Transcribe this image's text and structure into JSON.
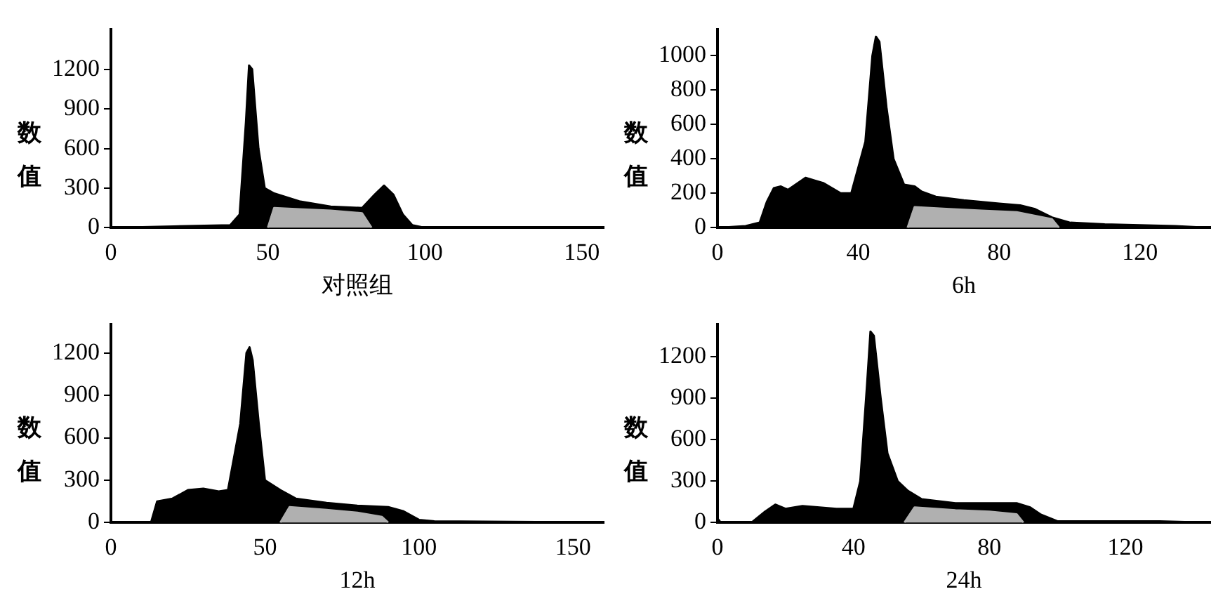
{
  "chart_data": [
    {
      "type": "area",
      "xlabel": "对照组",
      "ylabel": "数值",
      "xlim": [
        0,
        157
      ],
      "xticks": [
        0,
        50,
        100,
        150
      ],
      "ylim": [
        0,
        1500
      ],
      "yticks": [
        0,
        300,
        600,
        900,
        1200
      ],
      "grid": false,
      "series": [
        {
          "type": "area",
          "color": "#000000",
          "x": [
            0,
            20,
            38,
            41,
            43,
            44,
            45,
            47,
            49,
            52,
            60,
            70,
            80,
            84,
            87,
            90,
            93,
            96,
            100,
            157
          ],
          "values": [
            0,
            10,
            20,
            100,
            800,
            1230,
            1200,
            600,
            300,
            260,
            200,
            160,
            150,
            250,
            320,
            250,
            100,
            20,
            0,
            0
          ]
        },
        {
          "type": "area",
          "color": "#b0b0b0",
          "x": [
            50,
            52,
            60,
            70,
            80,
            83
          ],
          "values": [
            0,
            150,
            140,
            130,
            110,
            0
          ]
        }
      ]
    },
    {
      "type": "area",
      "xlabel": "6h",
      "ylabel": "数值",
      "xlim": [
        0,
        140
      ],
      "xticks": [
        0,
        40,
        80,
        120
      ],
      "ylim": [
        0,
        1150
      ],
      "yticks": [
        0,
        200,
        400,
        600,
        800,
        1000
      ],
      "grid": false,
      "series": [
        {
          "type": "area",
          "color": "#000000",
          "x": [
            0,
            8,
            12,
            14,
            16,
            18,
            20,
            25,
            30,
            35,
            38,
            42,
            44,
            45,
            46,
            48,
            50,
            53,
            56,
            58,
            62,
            70,
            80,
            86,
            90,
            95,
            100,
            110,
            130,
            140
          ],
          "values": [
            0,
            10,
            30,
            150,
            230,
            240,
            220,
            290,
            260,
            200,
            200,
            500,
            1000,
            1110,
            1080,
            700,
            400,
            250,
            240,
            210,
            180,
            160,
            140,
            130,
            110,
            60,
            30,
            20,
            10,
            0
          ]
        },
        {
          "type": "area",
          "color": "#b0b0b0",
          "x": [
            54,
            56,
            65,
            75,
            85,
            95,
            97
          ],
          "values": [
            0,
            120,
            110,
            100,
            90,
            50,
            0
          ]
        }
      ]
    },
    {
      "type": "area",
      "xlabel": "12h",
      "ylabel": "数值",
      "xlim": [
        0,
        160
      ],
      "xticks": [
        0,
        50,
        100,
        150
      ],
      "ylim": [
        0,
        1400
      ],
      "yticks": [
        0,
        300,
        600,
        900,
        1200
      ],
      "grid": false,
      "series": [
        {
          "type": "area",
          "color": "#000000",
          "x": [
            0,
            13,
            15,
            20,
            25,
            30,
            35,
            38,
            42,
            44,
            45,
            46,
            48,
            50,
            55,
            60,
            70,
            80,
            90,
            95,
            100,
            105,
            160
          ],
          "values": [
            0,
            0,
            150,
            170,
            230,
            240,
            220,
            230,
            700,
            1200,
            1240,
            1150,
            700,
            300,
            230,
            170,
            140,
            120,
            110,
            80,
            20,
            10,
            0
          ]
        },
        {
          "type": "area",
          "color": "#b0b0b0",
          "x": [
            55,
            58,
            70,
            80,
            88,
            90
          ],
          "values": [
            0,
            110,
            90,
            70,
            40,
            0
          ]
        }
      ]
    },
    {
      "type": "area",
      "xlabel": "24h",
      "ylabel": "数值",
      "xlim": [
        0,
        145
      ],
      "xticks": [
        0,
        40,
        80,
        120
      ],
      "ylim": [
        0,
        1430
      ],
      "yticks": [
        0,
        300,
        600,
        900,
        1200
      ],
      "grid": false,
      "series": [
        {
          "type": "area",
          "color": "#000000",
          "x": [
            0,
            1,
            10,
            14,
            17,
            20,
            25,
            30,
            35,
            40,
            42,
            44,
            45,
            46,
            48,
            50,
            53,
            56,
            60,
            70,
            80,
            88,
            92,
            95,
            100,
            130,
            145
          ],
          "values": [
            30,
            0,
            0,
            80,
            130,
            100,
            120,
            110,
            100,
            100,
            300,
            1000,
            1380,
            1350,
            900,
            500,
            300,
            230,
            170,
            140,
            140,
            140,
            110,
            60,
            10,
            10,
            0
          ]
        },
        {
          "type": "area",
          "color": "#b0b0b0",
          "x": [
            55,
            58,
            70,
            80,
            88,
            90
          ],
          "values": [
            0,
            110,
            90,
            80,
            60,
            0
          ]
        }
      ]
    }
  ]
}
